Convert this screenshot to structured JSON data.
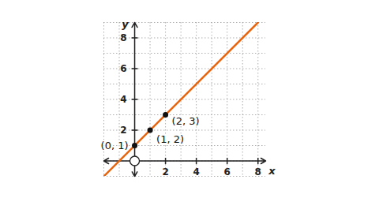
{
  "chart_data": {
    "type": "line",
    "x_label": "x",
    "y_label": "y",
    "xlim": [
      -2,
      8.5
    ],
    "ylim": [
      -1,
      9
    ],
    "xticks": [
      2,
      4,
      6,
      8
    ],
    "yticks": [
      2,
      4,
      6,
      8
    ],
    "grid": true,
    "series": [
      {
        "type": "line",
        "color": "#e8650f",
        "x": [
          -2,
          8
        ],
        "values": [
          -1,
          9
        ]
      },
      {
        "type": "scatter",
        "marker": "circle",
        "color": "#111111",
        "x": [
          0,
          1,
          2
        ],
        "values": [
          1,
          2,
          3
        ],
        "data_labels": true,
        "value_labels": [
          "(0, 1)",
          "(1, 2)",
          "(2, 3)"
        ]
      }
    ]
  }
}
